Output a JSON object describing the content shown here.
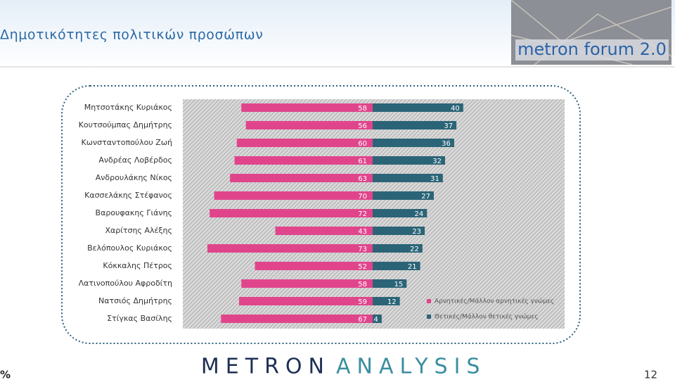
{
  "header": {
    "title": "Δημοτικότητες πολιτικών προσώπων",
    "logo": "metron forum 2.0"
  },
  "chart_data": {
    "type": "diverging-bar",
    "categories": [
      "Μητσοτάκης Κυριάκος",
      "Κουτσούμπας Δημήτρης",
      "Κωνσταντοπούλου Ζωή",
      "Ανδρέας Λοβέρδος",
      "Ανδρουλάκης Νίκος",
      "Κασσελάκης Στέφανος",
      "Βαρουφακης Γιάνης",
      "Χαρίτσης Αλέξης",
      "Βελόπουλος Κυριάκος",
      "Κόκκαλης Πέτρος",
      "Λατινοπούλου Αφροδίτη",
      "Νατσιός Δημήτρης",
      "Στίγκας Βασίλης"
    ],
    "series": [
      {
        "name": "Αρνητικές/Μάλλον αρνητικές γνώμες",
        "color": "#e0458c",
        "side": "left",
        "values": [
          58,
          56,
          60,
          61,
          63,
          70,
          72,
          43,
          73,
          52,
          58,
          59,
          67
        ]
      },
      {
        "name": "Θετικές/Μάλλον θετικές γνώμες",
        "color": "#2b6477",
        "side": "right",
        "values": [
          40,
          37,
          36,
          32,
          31,
          27,
          24,
          23,
          22,
          21,
          15,
          12,
          4
        ]
      }
    ]
  },
  "footer": {
    "brand_1": "METRON",
    "brand_2": "ANALYSIS",
    "unit": "%",
    "page": "12"
  }
}
